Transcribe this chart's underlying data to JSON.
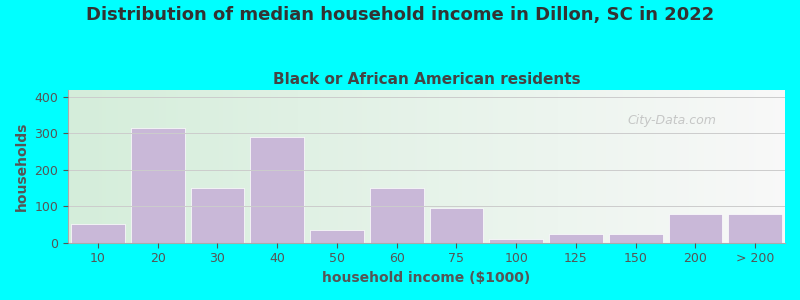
{
  "title": "Distribution of median household income in Dillon, SC in 2022",
  "subtitle": "Black or African American residents",
  "xlabel": "household income ($1000)",
  "ylabel": "households",
  "background_color": "#00FFFF",
  "bar_color": "#C9B8D8",
  "bar_labels": [
    "10",
    "20",
    "30",
    "40",
    "50",
    "60",
    "75",
    "100",
    "125",
    "150",
    "200",
    "> 200"
  ],
  "bar_heights": [
    50,
    315,
    150,
    290,
    35,
    150,
    95,
    10,
    25,
    25,
    80,
    80
  ],
  "bar_positions": [
    0,
    1,
    2,
    3,
    4,
    5,
    6,
    7,
    8,
    9,
    10,
    11
  ],
  "bar_width": 0.9,
  "ylim": [
    0,
    420
  ],
  "yticks": [
    0,
    100,
    200,
    300,
    400
  ],
  "title_fontsize": 13,
  "subtitle_fontsize": 11,
  "axis_label_fontsize": 10,
  "tick_fontsize": 9,
  "title_color": "#333333",
  "subtitle_color": "#444444",
  "axis_label_color": "#555555",
  "tick_color": "#555555",
  "grid_color": "#cccccc",
  "watermark": "City-Data.com",
  "plot_bg_gradient_left": "#d4edda",
  "plot_bg_gradient_right": "#f8f8f8"
}
